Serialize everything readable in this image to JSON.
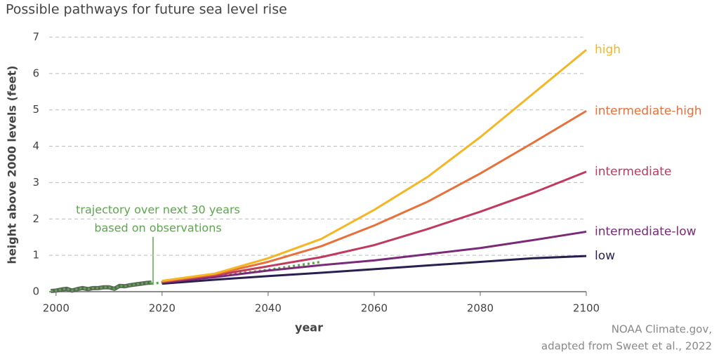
{
  "chart_data": {
    "type": "line",
    "title": "Possible pathways for future sea level rise",
    "y_label": "height above 2000 levels (feet)",
    "x_label": "year",
    "annotation": [
      "trajectory over next 30 years",
      "based on observations"
    ],
    "source": [
      "NOAA Climate.gov,",
      "adapted from Sweet et al., 2022"
    ],
    "xlim": [
      1998.7,
      2100
    ],
    "xticks": [
      2000,
      2020,
      2040,
      2060,
      2080,
      2100
    ],
    "ylim": [
      0,
      7
    ],
    "yticks": [
      0,
      1,
      2,
      3,
      4,
      5,
      6,
      7
    ],
    "grid": true,
    "series": [
      {
        "name": "high",
        "color": "#f4b624",
        "x": [
          2020,
          2030,
          2040,
          2050,
          2060,
          2070,
          2080,
          2090,
          2100
        ],
        "values": [
          0.3,
          0.5,
          0.92,
          1.45,
          2.25,
          3.15,
          4.25,
          5.45,
          6.65
        ]
      },
      {
        "name": "intermediate-high",
        "color": "#e8703a",
        "x": [
          2020,
          2030,
          2040,
          2050,
          2060,
          2070,
          2080,
          2090,
          2100
        ],
        "values": [
          0.28,
          0.48,
          0.82,
          1.25,
          1.82,
          2.47,
          3.25,
          4.1,
          4.97
        ]
      },
      {
        "name": "intermediate",
        "color": "#bf3a5e",
        "x": [
          2020,
          2030,
          2040,
          2050,
          2060,
          2070,
          2080,
          2090,
          2100
        ],
        "values": [
          0.27,
          0.45,
          0.7,
          0.95,
          1.28,
          1.72,
          2.2,
          2.72,
          3.3
        ]
      },
      {
        "name": "intermediate-low",
        "color": "#7a2a78",
        "x": [
          2020,
          2030,
          2040,
          2050,
          2060,
          2070,
          2080,
          2090,
          2100
        ],
        "values": [
          0.25,
          0.4,
          0.58,
          0.73,
          0.86,
          1.03,
          1.2,
          1.42,
          1.65
        ]
      },
      {
        "name": "low",
        "color": "#2b1f4f",
        "x": [
          2020,
          2030,
          2040,
          2050,
          2060,
          2070,
          2080,
          2090,
          2100
        ],
        "values": [
          0.22,
          0.33,
          0.43,
          0.52,
          0.62,
          0.72,
          0.82,
          0.92,
          0.98
        ]
      }
    ],
    "observed": {
      "color": "#5a6758",
      "x": [
        1999,
        2000,
        2001,
        2002,
        2003,
        2004,
        2005,
        2006,
        2007,
        2008,
        2009,
        2010,
        2011,
        2012,
        2013,
        2014,
        2015,
        2016,
        2017,
        2018
      ],
      "values": [
        0.02,
        0.03,
        0.06,
        0.08,
        0.03,
        0.07,
        0.1,
        0.07,
        0.1,
        0.1,
        0.12,
        0.12,
        0.08,
        0.16,
        0.15,
        0.18,
        0.2,
        0.22,
        0.24,
        0.25
      ]
    },
    "trajectory": {
      "color": "#5aa84a",
      "x": [
        2018,
        2030,
        2040,
        2050
      ],
      "values": [
        0.22,
        0.42,
        0.6,
        0.82
      ]
    }
  }
}
